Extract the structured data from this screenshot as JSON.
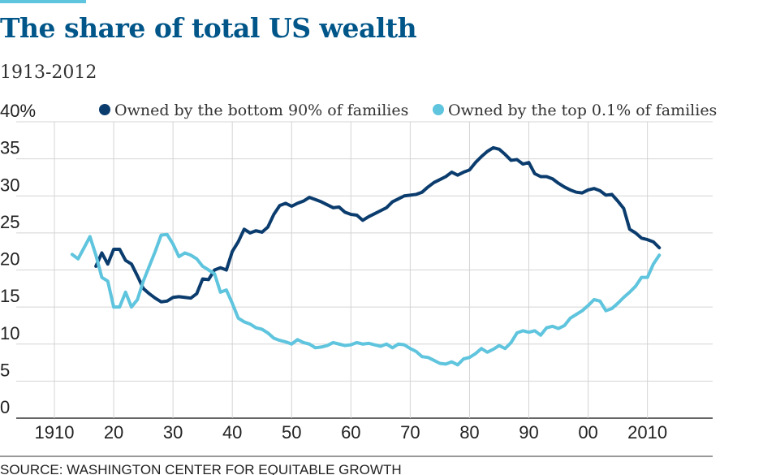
{
  "chart_data": {
    "type": "line",
    "title": "The share of total US wealth",
    "subtitle": "1913-2012",
    "source": "SOURCE: WASHINGTON CENTER FOR EQUITABLE GROWTH",
    "x": [
      1913,
      1914,
      1915,
      1916,
      1917,
      1918,
      1919,
      1920,
      1921,
      1922,
      1923,
      1924,
      1925,
      1926,
      1927,
      1928,
      1929,
      1930,
      1931,
      1932,
      1933,
      1934,
      1935,
      1936,
      1937,
      1938,
      1939,
      1940,
      1941,
      1942,
      1943,
      1944,
      1945,
      1946,
      1947,
      1948,
      1949,
      1950,
      1951,
      1952,
      1953,
      1954,
      1955,
      1956,
      1957,
      1958,
      1959,
      1960,
      1961,
      1962,
      1963,
      1964,
      1965,
      1966,
      1967,
      1968,
      1969,
      1970,
      1971,
      1972,
      1973,
      1974,
      1975,
      1976,
      1977,
      1978,
      1979,
      1980,
      1981,
      1982,
      1983,
      1984,
      1985,
      1986,
      1987,
      1988,
      1989,
      1990,
      1991,
      1992,
      1993,
      1994,
      1995,
      1996,
      1997,
      1998,
      1999,
      2000,
      2001,
      2002,
      2003,
      2004,
      2005,
      2006,
      2007,
      2008,
      2009,
      2010,
      2011,
      2012
    ],
    "series": [
      {
        "name": "Owned by the bottom 90% of families",
        "color": "#0b3c6e",
        "values": [
          null,
          null,
          null,
          null,
          20.5,
          22.3,
          20.8,
          22.8,
          22.8,
          21.3,
          20.8,
          19.2,
          17.5,
          16.8,
          16.2,
          15.7,
          15.8,
          16.3,
          16.4,
          16.3,
          16.2,
          16.8,
          18.8,
          18.7,
          20,
          20.3,
          20,
          22.5,
          23.8,
          25.5,
          25,
          25.3,
          25.1,
          25.8,
          27.5,
          28.7,
          29,
          28.6,
          29,
          29.3,
          29.8,
          29.5,
          29.2,
          28.8,
          28.4,
          28.5,
          27.8,
          27.5,
          27.4,
          26.7,
          27.2,
          27.6,
          28,
          28.4,
          29.2,
          29.6,
          30,
          30.1,
          30.2,
          30.5,
          31.2,
          31.8,
          32.2,
          32.6,
          33.2,
          32.8,
          33.2,
          33.5,
          34.5,
          35.3,
          36,
          36.5,
          36.3,
          35.6,
          34.8,
          34.9,
          34.3,
          34.5,
          33,
          32.6,
          32.6,
          32.3,
          31.7,
          31.2,
          30.8,
          30.5,
          30.4,
          30.8,
          31,
          30.7,
          30.1,
          30.2,
          29.3,
          28.3,
          25.5,
          25,
          24.3,
          24.1,
          23.8,
          23
        ]
      },
      {
        "name": "Owned by the top 0.1% of families",
        "color": "#5fc4dd",
        "values": [
          22.1,
          21.5,
          23,
          24.5,
          22,
          19,
          18.5,
          15,
          15,
          17,
          15,
          16,
          18.5,
          20.5,
          22.5,
          24.7,
          24.8,
          23.5,
          21.8,
          22.3,
          22,
          21.5,
          20.5,
          20,
          19.5,
          17,
          17.3,
          15.5,
          13.5,
          13,
          12.7,
          12.2,
          12,
          11.5,
          10.8,
          10.5,
          10.3,
          10,
          10.6,
          10.2,
          10,
          9.5,
          9.6,
          9.8,
          10.2,
          10,
          9.8,
          9.9,
          10.2,
          10,
          10.1,
          9.9,
          9.7,
          10,
          9.5,
          10,
          9.9,
          9.4,
          9,
          8.3,
          8.2,
          7.8,
          7.4,
          7.3,
          7.6,
          7.2,
          8,
          8.2,
          8.7,
          9.4,
          8.9,
          9.3,
          9.8,
          9.4,
          10.2,
          11.5,
          11.8,
          11.6,
          11.8,
          11.2,
          12.2,
          12.4,
          12.1,
          12.5,
          13.5,
          14,
          14.5,
          15.2,
          16,
          15.8,
          14.5,
          14.8,
          15.5,
          16.3,
          17,
          17.8,
          19,
          19,
          20.8,
          22
        ]
      }
    ],
    "xlim": [
      1910,
      2021
    ],
    "xticks": [
      1910,
      {
        "value": 1920,
        "label": "20"
      },
      {
        "value": 1930,
        "label": "30"
      },
      {
        "value": 1940,
        "label": "40"
      },
      {
        "value": 1950,
        "label": "50"
      },
      {
        "value": 1960,
        "label": "60"
      },
      {
        "value": 1970,
        "label": "70"
      },
      {
        "value": 1980,
        "label": "80"
      },
      {
        "value": 1990,
        "label": "90"
      },
      {
        "value": 2000,
        "label": "00"
      },
      2010
    ],
    "ylim": [
      0,
      40
    ],
    "yticks": [
      0,
      5,
      10,
      15,
      20,
      25,
      30,
      35,
      {
        "value": 40,
        "label": "40%"
      }
    ],
    "grid": true,
    "legend": "top"
  }
}
